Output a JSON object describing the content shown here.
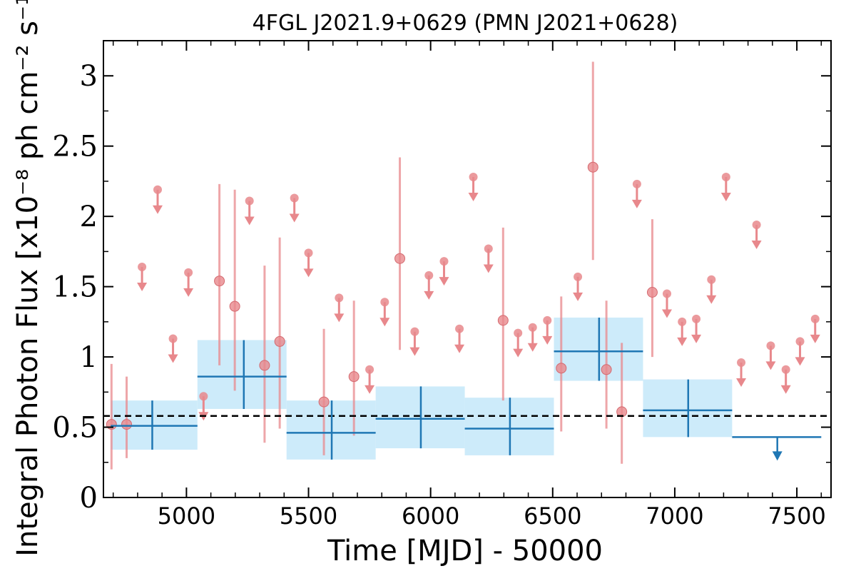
{
  "chart_data": {
    "type": "scatter",
    "title": "4FGL J2021.9+0629 (PMN J2021+0628)",
    "xlabel": "Time [MJD] - 50000",
    "ylabel": "Integral Photon Flux [x10⁻⁸ ph cm⁻² s⁻¹]",
    "xlim": [
      4660,
      7640
    ],
    "ylim": [
      0,
      3.25
    ],
    "x_ticks": [
      5000,
      5500,
      6000,
      6500,
      7000,
      7500
    ],
    "x_tick_labels": [
      "5000",
      "5500",
      "6000",
      "6500",
      "7000",
      "7500"
    ],
    "y_ticks": [
      0,
      0.5,
      1,
      1.5,
      2,
      2.5,
      3
    ],
    "y_tick_labels": [
      "0",
      "0.5",
      "1",
      "1.5",
      "2",
      "2.5",
      "3"
    ],
    "mean_flux": 0.58,
    "colors": {
      "short_bins": "#e8888c",
      "long_bins": "#1f77b4",
      "long_bins_band": "#cdebfa",
      "mean_line": "#000000"
    },
    "series": [
      {
        "points": [
          {
            "x": 4693,
            "y": 0.52,
            "ylo": 0.2,
            "yhi": 0.95
          },
          {
            "x": 4755,
            "y": 0.52,
            "ylo": 0.28,
            "yhi": 0.86
          },
          {
            "x": 5135,
            "y": 1.54,
            "ylo": 0.94,
            "yhi": 2.23
          },
          {
            "x": 5198,
            "y": 1.36,
            "ylo": 0.76,
            "yhi": 2.19
          },
          {
            "x": 5320,
            "y": 0.94,
            "ylo": 0.39,
            "yhi": 1.65
          },
          {
            "x": 5382,
            "y": 1.11,
            "ylo": 0.49,
            "yhi": 1.85
          },
          {
            "x": 5563,
            "y": 0.68,
            "ylo": 0.3,
            "yhi": 1.2
          },
          {
            "x": 5686,
            "y": 0.86,
            "ylo": 0.44,
            "yhi": 1.4
          },
          {
            "x": 5874,
            "y": 1.7,
            "ylo": 1.05,
            "yhi": 2.42
          },
          {
            "x": 6297,
            "y": 1.26,
            "ylo": 0.69,
            "yhi": 1.92
          },
          {
            "x": 6535,
            "y": 0.92,
            "ylo": 0.47,
            "yhi": 1.43
          },
          {
            "x": 6665,
            "y": 2.35,
            "ylo": 1.69,
            "yhi": 3.1
          },
          {
            "x": 6720,
            "y": 0.91,
            "ylo": 0.49,
            "yhi": 1.4
          },
          {
            "x": 6783,
            "y": 0.61,
            "ylo": 0.24,
            "yhi": 1.1
          },
          {
            "x": 6908,
            "y": 1.46,
            "ylo": 1.0,
            "yhi": 1.98
          }
        ],
        "upper_limits": [
          {
            "x": 4818,
            "y": 1.64
          },
          {
            "x": 4882,
            "y": 2.19
          },
          {
            "x": 4945,
            "y": 1.13
          },
          {
            "x": 5008,
            "y": 1.6
          },
          {
            "x": 5070,
            "y": 0.72
          },
          {
            "x": 5258,
            "y": 2.11
          },
          {
            "x": 5442,
            "y": 2.13
          },
          {
            "x": 5500,
            "y": 1.74
          },
          {
            "x": 5625,
            "y": 1.42
          },
          {
            "x": 5750,
            "y": 0.91
          },
          {
            "x": 5812,
            "y": 1.39
          },
          {
            "x": 5935,
            "y": 1.18
          },
          {
            "x": 5993,
            "y": 1.58
          },
          {
            "x": 6055,
            "y": 1.68
          },
          {
            "x": 6118,
            "y": 1.2
          },
          {
            "x": 6175,
            "y": 2.28
          },
          {
            "x": 6237,
            "y": 1.77
          },
          {
            "x": 6358,
            "y": 1.17
          },
          {
            "x": 6418,
            "y": 1.21
          },
          {
            "x": 6478,
            "y": 1.26
          },
          {
            "x": 6603,
            "y": 1.57
          },
          {
            "x": 6845,
            "y": 2.23
          },
          {
            "x": 6968,
            "y": 1.45
          },
          {
            "x": 7030,
            "y": 1.25
          },
          {
            "x": 7088,
            "y": 1.27
          },
          {
            "x": 7150,
            "y": 1.55
          },
          {
            "x": 7210,
            "y": 2.28
          },
          {
            "x": 7272,
            "y": 0.96
          },
          {
            "x": 7335,
            "y": 1.94
          },
          {
            "x": 7393,
            "y": 1.08
          },
          {
            "x": 7455,
            "y": 0.91
          },
          {
            "x": 7513,
            "y": 1.11
          },
          {
            "x": 7575,
            "y": 1.27
          }
        ]
      },
      {
        "bins": [
          {
            "x0": 4690,
            "x1": 5045,
            "xc": 4860,
            "y": 0.51,
            "ylo": 0.34,
            "yhi": 0.69
          },
          {
            "x0": 5045,
            "x1": 5410,
            "xc": 5235,
            "y": 0.86,
            "ylo": 0.63,
            "yhi": 1.12
          },
          {
            "x0": 5410,
            "x1": 5775,
            "xc": 5595,
            "y": 0.46,
            "ylo": 0.27,
            "yhi": 0.69
          },
          {
            "x0": 5775,
            "x1": 6140,
            "xc": 5960,
            "y": 0.56,
            "ylo": 0.35,
            "yhi": 0.79
          },
          {
            "x0": 6140,
            "x1": 6505,
            "xc": 6325,
            "y": 0.49,
            "ylo": 0.3,
            "yhi": 0.71
          },
          {
            "x0": 6505,
            "x1": 6870,
            "xc": 6690,
            "y": 1.04,
            "ylo": 0.83,
            "yhi": 1.28
          },
          {
            "x0": 6870,
            "x1": 7235,
            "xc": 7055,
            "y": 0.62,
            "ylo": 0.43,
            "yhi": 0.84
          }
        ],
        "upper_limits": [
          {
            "x0": 7235,
            "x1": 7600,
            "xc": 7420,
            "y": 0.43
          }
        ]
      }
    ]
  }
}
